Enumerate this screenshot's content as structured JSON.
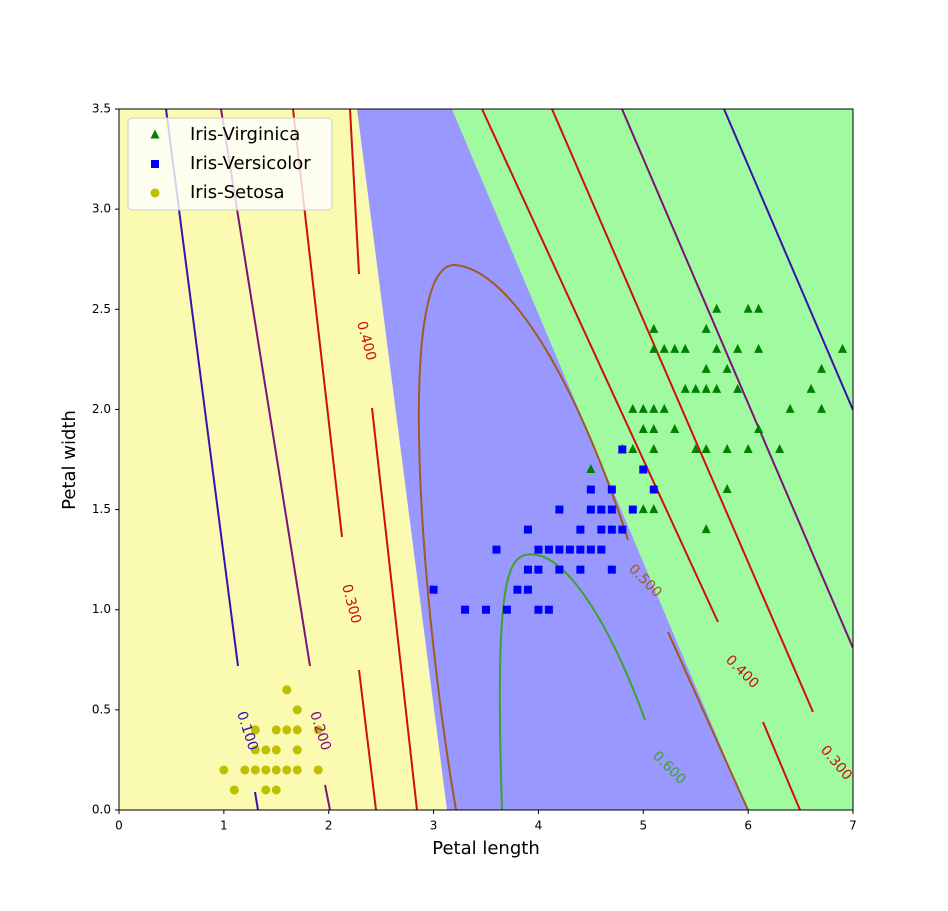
{
  "chart_data": {
    "type": "scatter",
    "x_label": "Petal length",
    "y_label": "Petal width",
    "xlim": [
      0,
      7
    ],
    "ylim": [
      0,
      3.5
    ],
    "xticks": [
      0,
      1,
      2,
      3,
      4,
      5,
      6,
      7
    ],
    "yticks": [
      {
        "value": 0,
        "label": "0.0"
      },
      0.5,
      {
        "value": 1,
        "label": "1.0"
      },
      1.5,
      {
        "value": 2,
        "label": "2.0"
      },
      2.5,
      {
        "value": 3,
        "label": "3.0"
      },
      3.5
    ],
    "legend": "upper left",
    "series": [
      {
        "name": "Iris-Virginica",
        "color": "#008000",
        "marker": "triangle",
        "x": [
          4.5,
          4.8,
          4.9,
          4.9,
          5.0,
          5.0,
          5.0,
          5.1,
          5.1,
          5.1,
          5.1,
          5.1,
          5.1,
          5.2,
          5.2,
          5.3,
          5.3,
          5.4,
          5.4,
          5.5,
          5.5,
          5.6,
          5.6,
          5.6,
          5.6,
          5.6,
          5.7,
          5.7,
          5.7,
          5.8,
          5.8,
          5.8,
          5.9,
          5.9,
          6.0,
          6.0,
          6.1,
          6.1,
          6.1,
          6.3,
          6.4,
          6.6,
          6.7,
          6.7,
          6.9
        ],
        "y": [
          1.7,
          1.8,
          1.8,
          2.0,
          1.5,
          2.0,
          1.9,
          1.5,
          1.9,
          2.0,
          2.3,
          2.4,
          1.8,
          2.0,
          2.3,
          1.9,
          2.3,
          2.3,
          2.1,
          1.8,
          2.1,
          1.4,
          1.8,
          2.1,
          2.2,
          2.4,
          2.1,
          2.3,
          2.5,
          1.6,
          1.8,
          2.2,
          2.1,
          2.3,
          1.8,
          2.5,
          1.9,
          2.3,
          2.5,
          1.8,
          2.0,
          2.1,
          2.0,
          2.2,
          2.3
        ]
      },
      {
        "name": "Iris-Versicolor",
        "color": "#0000ff",
        "marker": "square",
        "x": [
          3.0,
          3.3,
          3.5,
          3.6,
          3.7,
          3.8,
          3.9,
          3.9,
          3.9,
          4.0,
          4.0,
          4.0,
          4.1,
          4.1,
          4.2,
          4.2,
          4.2,
          4.3,
          4.4,
          4.4,
          4.4,
          4.5,
          4.5,
          4.5,
          4.6,
          4.6,
          4.6,
          4.7,
          4.7,
          4.7,
          4.7,
          4.8,
          4.8,
          4.9,
          5.0,
          5.1
        ],
        "y": [
          1.1,
          1.0,
          1.0,
          1.3,
          1.0,
          1.1,
          1.1,
          1.2,
          1.4,
          1.0,
          1.2,
          1.3,
          1.0,
          1.3,
          1.2,
          1.3,
          1.5,
          1.3,
          1.2,
          1.3,
          1.4,
          1.3,
          1.5,
          1.6,
          1.3,
          1.4,
          1.5,
          1.2,
          1.4,
          1.5,
          1.6,
          1.4,
          1.8,
          1.5,
          1.7,
          1.6
        ]
      },
      {
        "name": "Iris-Setosa",
        "color": "#bfbf00",
        "marker": "circle",
        "x": [
          1.0,
          1.1,
          1.2,
          1.3,
          1.3,
          1.3,
          1.4,
          1.4,
          1.4,
          1.5,
          1.5,
          1.5,
          1.5,
          1.6,
          1.6,
          1.6,
          1.7,
          1.7,
          1.7,
          1.7,
          1.9,
          1.9
        ],
        "y": [
          0.2,
          0.1,
          0.2,
          0.2,
          0.3,
          0.4,
          0.2,
          0.3,
          0.1,
          0.2,
          0.4,
          0.1,
          0.3,
          0.2,
          0.6,
          0.4,
          0.2,
          0.3,
          0.4,
          0.5,
          0.2,
          0.4
        ]
      }
    ],
    "contours": [
      {
        "label": "0.100",
        "color": "#3a10b0"
      },
      {
        "label": "0.200",
        "color": "#80107a"
      },
      {
        "label": "0.300",
        "color": "#cc1010"
      },
      {
        "label": "0.400",
        "color": "#cc1010"
      },
      {
        "label": "0.500",
        "color": "#a05a20"
      },
      {
        "label": "0.600",
        "color": "#40a030"
      },
      {
        "label": "0.400",
        "color": "#cc1010"
      },
      {
        "label": "0.300",
        "color": "#cc1010"
      }
    ]
  }
}
